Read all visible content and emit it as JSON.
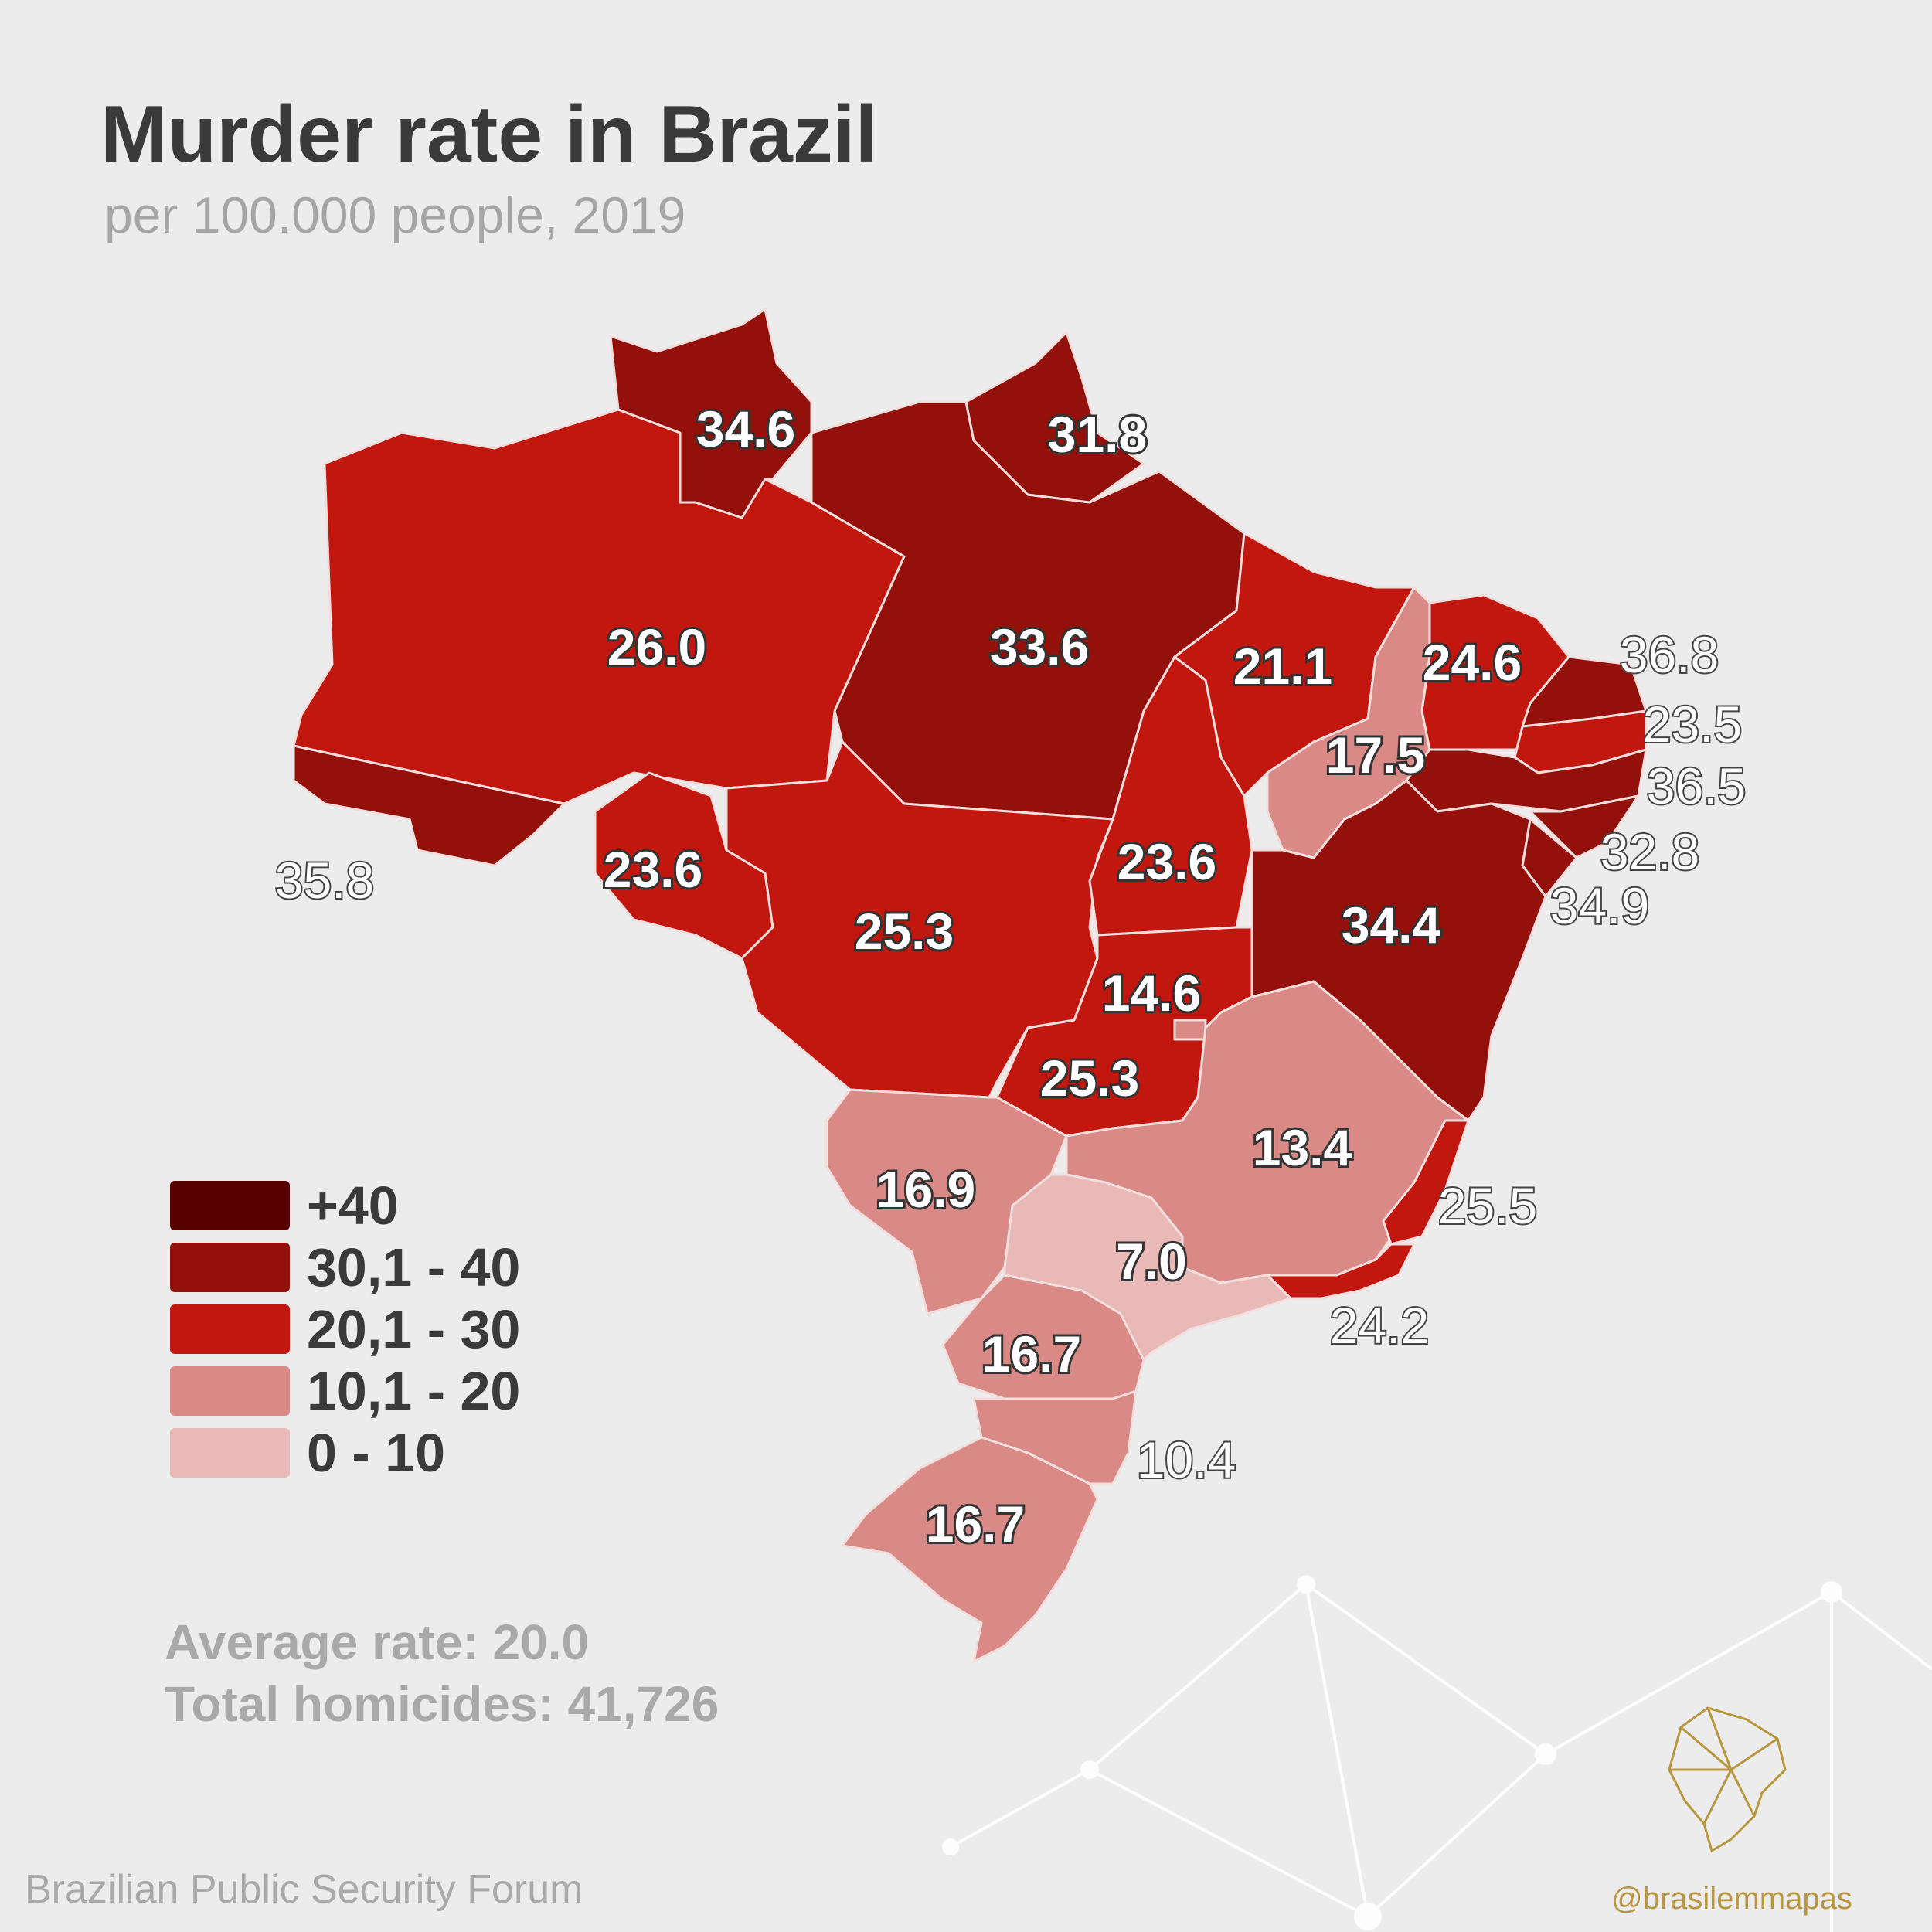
{
  "title": "Murder rate in Brazil",
  "subtitle": "per 100.000 people, 2019",
  "legend": [
    {
      "label": "+40",
      "color": "#560000"
    },
    {
      "label": "30,1 - 40",
      "color": "#94100b"
    },
    {
      "label": "20,1 - 30",
      "color": "#c1170f"
    },
    {
      "label": "10,1 - 20",
      "color": "#d98a87"
    },
    {
      "label": "0 - 10",
      "color": "#e8b9b7"
    }
  ],
  "states": [
    {
      "value": "34.6",
      "bin": 1
    },
    {
      "value": "31.8",
      "bin": 1
    },
    {
      "value": "26.0",
      "bin": 2
    },
    {
      "value": "33.6",
      "bin": 1
    },
    {
      "value": "21.1",
      "bin": 2
    },
    {
      "value": "24.6",
      "bin": 2
    },
    {
      "value": "17.5",
      "bin": 3
    },
    {
      "value": "36.8",
      "bin": 1
    },
    {
      "value": "23.5",
      "bin": 2
    },
    {
      "value": "36.5",
      "bin": 1
    },
    {
      "value": "32.8",
      "bin": 1
    },
    {
      "value": "34.9",
      "bin": 1
    },
    {
      "value": "35.8",
      "bin": 1
    },
    {
      "value": "23.6",
      "bin": 2
    },
    {
      "value": "23.6",
      "bin": 2
    },
    {
      "value": "25.3",
      "bin": 2
    },
    {
      "value": "34.4",
      "bin": 1
    },
    {
      "value": "14.6",
      "bin": 3
    },
    {
      "value": "25.3",
      "bin": 2
    },
    {
      "value": "13.4",
      "bin": 3
    },
    {
      "value": "16.9",
      "bin": 3
    },
    {
      "value": "7.0",
      "bin": 4
    },
    {
      "value": "25.5",
      "bin": 2
    },
    {
      "value": "24.2",
      "bin": 2
    },
    {
      "value": "16.7",
      "bin": 3
    },
    {
      "value": "10.4",
      "bin": 3
    },
    {
      "value": "16.7",
      "bin": 3
    }
  ],
  "stats": {
    "average": "Average rate: 20.0",
    "total": "Total homicides: 41,726"
  },
  "source": "Brazilian Public Security Forum",
  "handle": "@brasilemmapas"
}
